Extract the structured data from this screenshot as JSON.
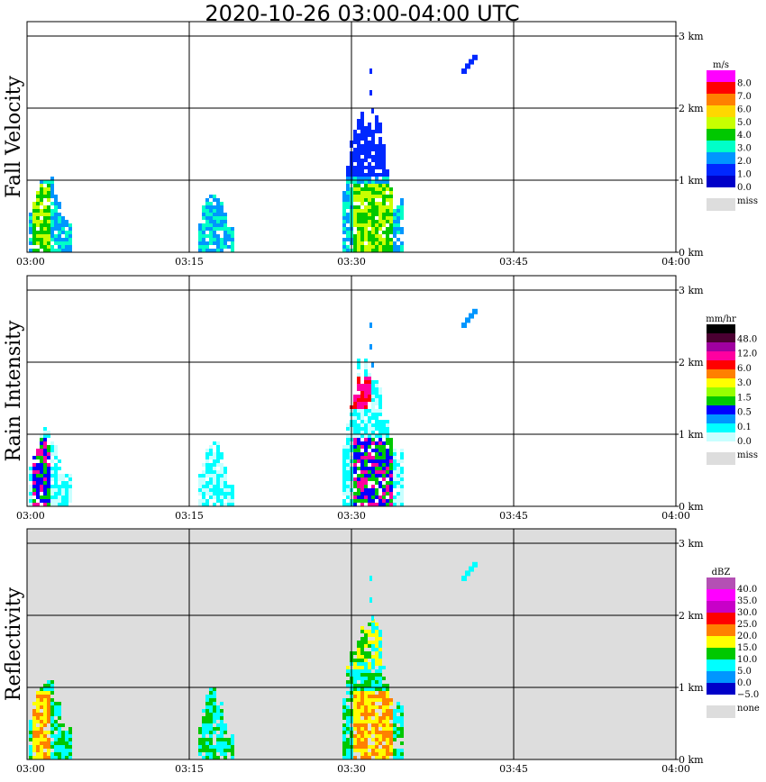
{
  "title": "2020-10-26   03:00-04:00 UTC",
  "x_ticks": [
    "03:00",
    "03:15",
    "03:30",
    "03:45",
    "04:00"
  ],
  "y_ticks": [
    "0 km",
    "1 km",
    "2 km",
    "3 km"
  ],
  "chart_data": [
    {
      "type": "heatmap",
      "ylabel": "Fall Velocity",
      "legend_title": "m/s",
      "legend_labels": [
        "8.0",
        "7.0",
        "6.0",
        "5.0",
        "4.0",
        "3.0",
        "2.0",
        "1.0",
        "0.0"
      ],
      "legend_colors": [
        "#ff00ff",
        "#ff0000",
        "#ff8000",
        "#ffd700",
        "#c8ff00",
        "#00c800",
        "#00ffc8",
        "#0096ff",
        "#0028ff",
        "#0000c8"
      ],
      "missing_label": "miss",
      "missing_color": "#dddddd",
      "background": "#ffffff",
      "xlim": [
        "03:00",
        "04:00"
      ],
      "ylim_km": [
        0,
        3.2
      ],
      "grid": true
    },
    {
      "type": "heatmap",
      "ylabel": "Rain Intensity",
      "legend_title": "mm/hr",
      "legend_labels": [
        "48.0",
        "12.0",
        "6.0",
        "3.0",
        "1.5",
        "0.5",
        "0.1",
        "0.0"
      ],
      "legend_colors": [
        "#000000",
        "#4b0032",
        "#a000a0",
        "#ff00a0",
        "#ff0000",
        "#ff8000",
        "#ffff00",
        "#96ff00",
        "#00c800",
        "#0000ff",
        "#0096ff",
        "#00ffff",
        "#c8ffff"
      ],
      "missing_label": "miss",
      "missing_color": "#dddddd",
      "background": "#ffffff",
      "xlim": [
        "03:00",
        "04:00"
      ],
      "ylim_km": [
        0,
        3.2
      ],
      "grid": true
    },
    {
      "type": "heatmap",
      "ylabel": "Reflectivity",
      "legend_title": "dBZ",
      "legend_labels": [
        "40.0",
        "35.0",
        "30.0",
        "25.0",
        "20.0",
        "15.0",
        "10.0",
        "5.0",
        "0.0",
        "−5.0"
      ],
      "legend_colors": [
        "#b450b4",
        "#ff00ff",
        "#c800c8",
        "#ff0000",
        "#ff8000",
        "#ffff00",
        "#00c800",
        "#00ffff",
        "#0096ff",
        "#0000c8"
      ],
      "missing_label": "none",
      "missing_color": "#dddddd",
      "background": "#dddddd",
      "xlim": [
        "03:00",
        "04:00"
      ],
      "ylim_km": [
        0,
        3.2
      ],
      "grid": true
    }
  ]
}
